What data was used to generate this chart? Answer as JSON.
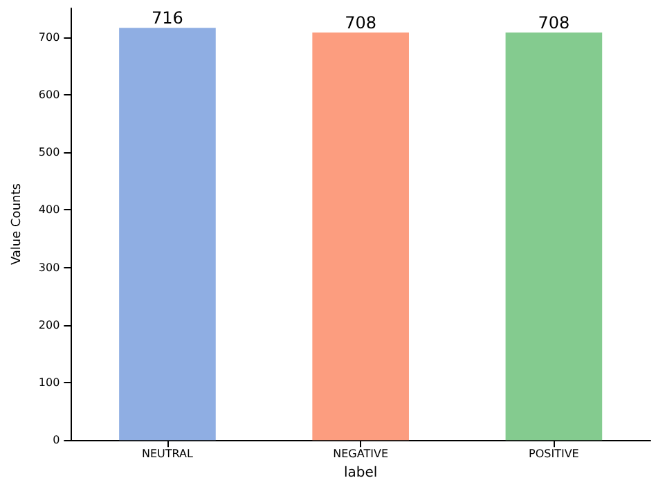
{
  "chart_data": {
    "type": "bar",
    "xlabel": "label",
    "ylabel": "Value Counts",
    "categories": [
      "NEUTRAL",
      "NEGATIVE",
      "POSITIVE"
    ],
    "values": [
      716,
      708,
      708
    ],
    "colors": [
      "#8faee3",
      "#fc9d7f",
      "#84cb8f"
    ],
    "ylim": [
      0,
      750
    ],
    "yticks": [
      0,
      100,
      200,
      300,
      400,
      500,
      600,
      700
    ],
    "data_labels": true
  }
}
